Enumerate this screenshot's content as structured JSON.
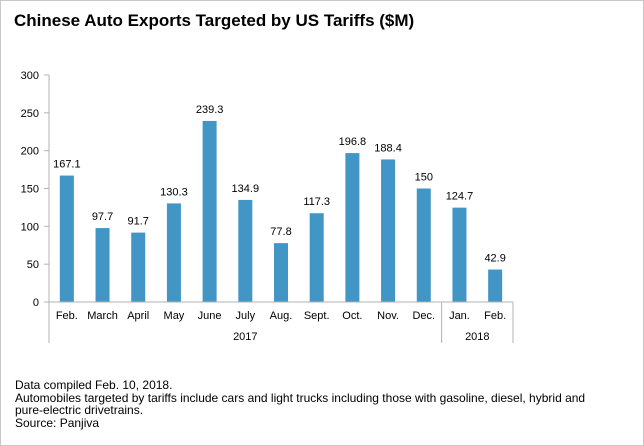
{
  "chart_data": {
    "type": "bar",
    "title": "Chinese Auto Exports Targeted by US Tariffs ($M)",
    "categories": [
      "Feb.",
      "March",
      "April",
      "May",
      "June",
      "July",
      "Aug.",
      "Sept.",
      "Oct.",
      "Nov.",
      "Dec.",
      "Jan.",
      "Feb."
    ],
    "values": [
      167.1,
      97.7,
      91.7,
      130.3,
      239.3,
      134.9,
      77.8,
      117.3,
      196.8,
      188.4,
      150,
      124.7,
      42.9
    ],
    "value_labels": [
      "167.1",
      "97.7",
      "91.7",
      "130.3",
      "239.3",
      "134.9",
      "77.8",
      "117.3",
      "196.8",
      "188.4",
      "150",
      "124.7",
      "42.9"
    ],
    "year_groups": [
      {
        "label": "2017",
        "count": 11
      },
      {
        "label": "2018",
        "count": 2
      }
    ],
    "ylim": [
      0,
      300
    ],
    "yticks": [
      0,
      50,
      100,
      150,
      200,
      250,
      300
    ],
    "grid": false,
    "legend": "none",
    "bar_color": "#4196c5"
  },
  "notes": [
    "Data compiled Feb. 10, 2018.",
    "Automobiles targeted by tariffs include cars and light trucks including those with gasoline, diesel, hybrid and pure-electric drivetrains.",
    "Source: Panjiva"
  ]
}
